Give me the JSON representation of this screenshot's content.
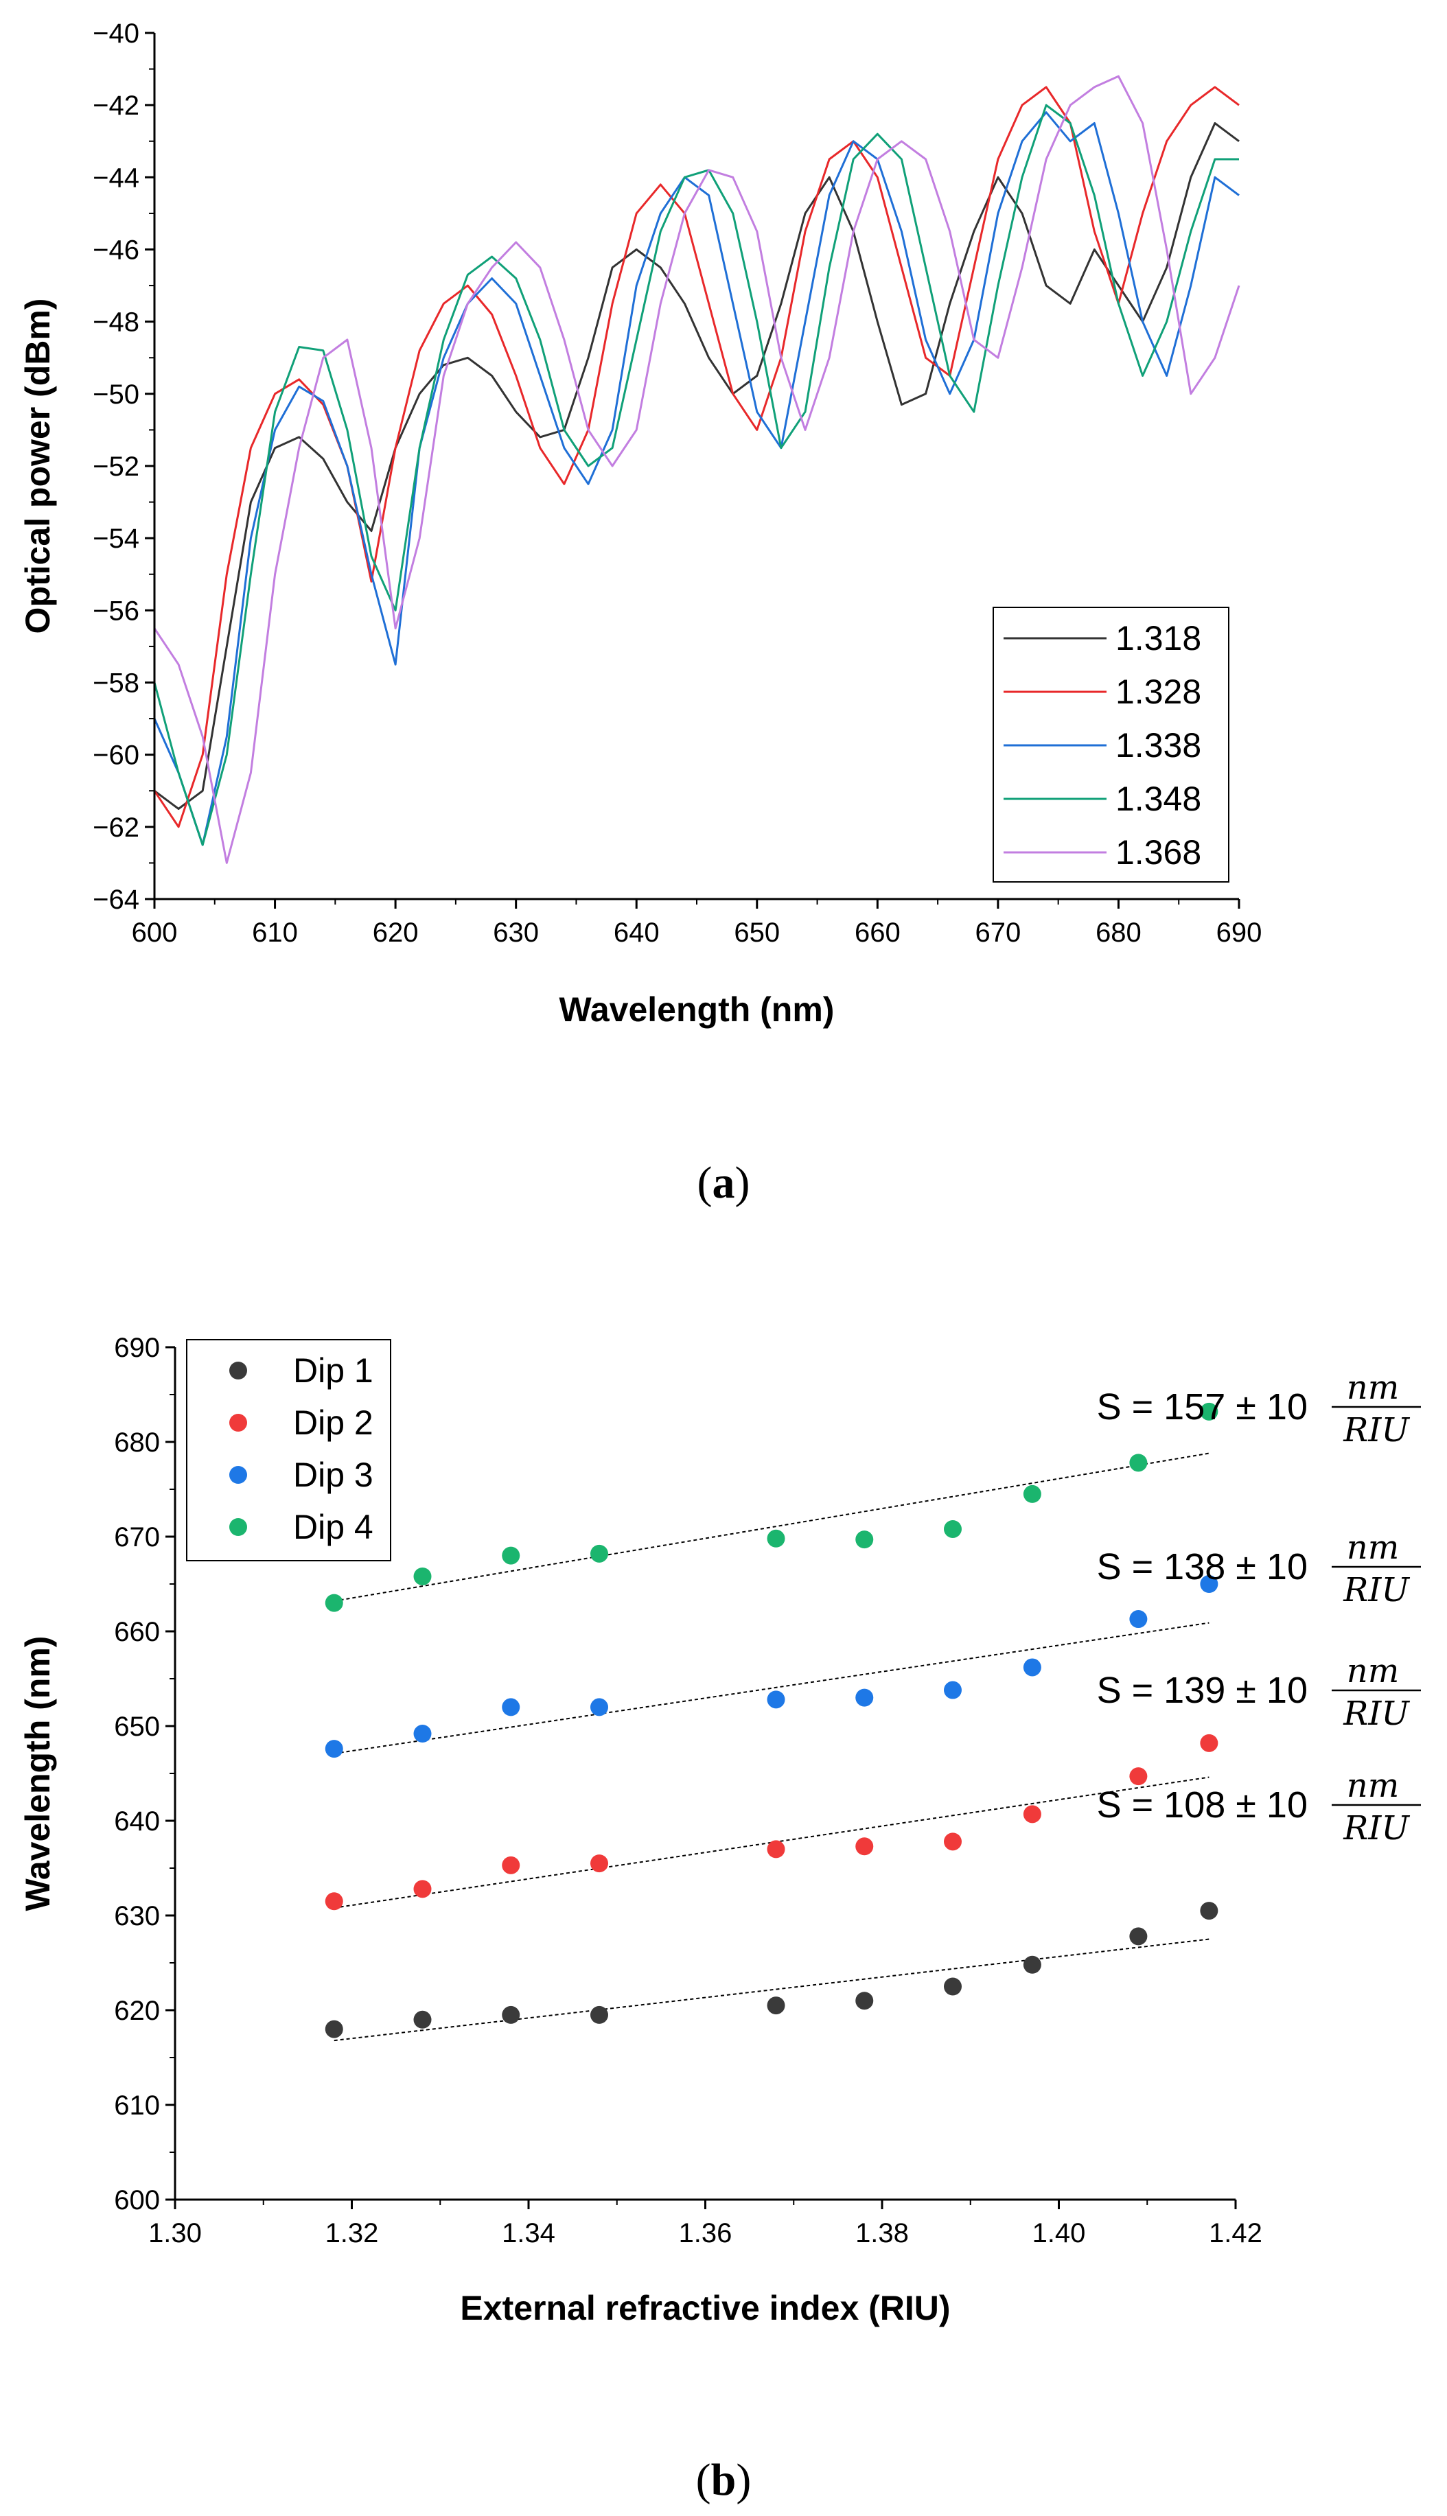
{
  "colors": {
    "s1": "#333333",
    "s2": "#e8282a",
    "s3": "#1f6fd6",
    "s4": "#10a078",
    "s5": "#c27ee0",
    "dip1": "#3a3a3a",
    "dip2": "#f03a3a",
    "dip3": "#1e78e6",
    "dip4": "#1bb56e"
  },
  "captions": {
    "a": {
      "open": "(",
      "letter": "a",
      "close": ")"
    },
    "b": {
      "open": "(",
      "letter": "b",
      "close": ")"
    }
  },
  "chart_data": [
    {
      "type": "line",
      "title": "",
      "xlabel": "Wavelength (nm)",
      "ylabel": "Optical power (dBm)",
      "xlim": [
        600,
        690
      ],
      "ylim": [
        -64,
        -40
      ],
      "xticks": [
        "600",
        "610",
        "620",
        "630",
        "640",
        "650",
        "660",
        "670",
        "680",
        "690"
      ],
      "yticks": [
        "-40",
        "-42",
        "-44",
        "-46",
        "-48",
        "-50",
        "-52",
        "-54",
        "-56",
        "-58",
        "-60",
        "-62",
        "-64"
      ],
      "legend_position": "bottom-right",
      "series": [
        {
          "name": "1.318",
          "x": [
            600,
            602,
            604,
            606,
            608,
            610,
            612,
            614,
            616,
            618,
            620,
            622,
            624,
            626,
            628,
            630,
            632,
            634,
            636,
            638,
            640,
            642,
            644,
            646,
            648,
            650,
            652,
            654,
            656,
            658,
            660,
            662,
            664,
            666,
            668,
            670,
            672,
            674,
            676,
            678,
            680,
            682,
            684,
            686,
            688,
            690
          ],
          "y": [
            -61.0,
            -61.5,
            -61.0,
            -57.0,
            -53.0,
            -51.5,
            -51.2,
            -51.8,
            -53.0,
            -53.8,
            -51.5,
            -50.0,
            -49.2,
            -49.0,
            -49.5,
            -50.5,
            -51.2,
            -51.0,
            -49.0,
            -46.5,
            -46.0,
            -46.5,
            -47.5,
            -49.0,
            -50.0,
            -49.5,
            -47.5,
            -45.0,
            -44.0,
            -45.5,
            -48.0,
            -50.3,
            -50.0,
            -47.5,
            -45.5,
            -44.0,
            -45.0,
            -47.0,
            -47.5,
            -46.0,
            -47.0,
            -48.0,
            -46.5,
            -44.0,
            -42.5,
            -43.0
          ]
        },
        {
          "name": "1.328",
          "x": [
            600,
            602,
            604,
            606,
            608,
            610,
            612,
            614,
            616,
            618,
            620,
            622,
            624,
            626,
            628,
            630,
            632,
            634,
            636,
            638,
            640,
            642,
            644,
            646,
            648,
            650,
            652,
            654,
            656,
            658,
            660,
            662,
            664,
            666,
            668,
            670,
            672,
            674,
            676,
            678,
            680,
            682,
            684,
            686,
            688,
            690
          ],
          "y": [
            -61.0,
            -62.0,
            -60.0,
            -55.0,
            -51.5,
            -50.0,
            -49.6,
            -50.3,
            -52.0,
            -55.2,
            -51.5,
            -48.8,
            -47.5,
            -47.0,
            -47.8,
            -49.5,
            -51.5,
            -52.5,
            -51.0,
            -47.5,
            -45.0,
            -44.2,
            -45.0,
            -47.5,
            -50.0,
            -51.0,
            -49.0,
            -45.5,
            -43.5,
            -43.0,
            -44.0,
            -46.5,
            -49.0,
            -49.5,
            -46.5,
            -43.5,
            -42.0,
            -41.5,
            -42.5,
            -45.5,
            -47.5,
            -45.0,
            -43.0,
            -42.0,
            -41.5,
            -42.0
          ]
        },
        {
          "name": "1.338",
          "x": [
            600,
            602,
            604,
            606,
            608,
            610,
            612,
            614,
            616,
            618,
            620,
            622,
            624,
            626,
            628,
            630,
            632,
            634,
            636,
            638,
            640,
            642,
            644,
            646,
            648,
            650,
            652,
            654,
            656,
            658,
            660,
            662,
            664,
            666,
            668,
            670,
            672,
            674,
            676,
            678,
            680,
            682,
            684,
            686,
            688,
            690
          ],
          "y": [
            -59.0,
            -60.5,
            -62.5,
            -59.5,
            -54.0,
            -51.0,
            -49.8,
            -50.2,
            -52.0,
            -55.0,
            -57.5,
            -51.5,
            -49.0,
            -47.5,
            -46.8,
            -47.5,
            -49.5,
            -51.5,
            -52.5,
            -51.0,
            -47.0,
            -45.0,
            -44.0,
            -44.5,
            -47.5,
            -50.5,
            -51.5,
            -48.0,
            -44.5,
            -43.0,
            -43.5,
            -45.5,
            -48.5,
            -50.0,
            -48.5,
            -45.0,
            -43.0,
            -42.2,
            -43.0,
            -42.5,
            -45.0,
            -48.0,
            -49.5,
            -47.0,
            -44.0,
            -44.5
          ]
        },
        {
          "name": "1.348",
          "x": [
            600,
            602,
            604,
            606,
            608,
            610,
            612,
            614,
            616,
            618,
            620,
            622,
            624,
            626,
            628,
            630,
            632,
            634,
            636,
            638,
            640,
            642,
            644,
            646,
            648,
            650,
            652,
            654,
            656,
            658,
            660,
            662,
            664,
            666,
            668,
            670,
            672,
            674,
            676,
            678,
            680,
            682,
            684,
            686,
            688,
            690
          ],
          "y": [
            -58.0,
            -60.5,
            -62.5,
            -60.0,
            -55.0,
            -50.5,
            -48.7,
            -48.8,
            -51.0,
            -54.5,
            -56.0,
            -51.5,
            -48.5,
            -46.7,
            -46.2,
            -46.8,
            -48.5,
            -51.0,
            -52.0,
            -51.5,
            -48.5,
            -45.5,
            -44.0,
            -43.8,
            -45.0,
            -48.0,
            -51.5,
            -50.5,
            -46.5,
            -43.5,
            -42.8,
            -43.5,
            -46.5,
            -49.5,
            -50.5,
            -47.0,
            -44.0,
            -42.0,
            -42.5,
            -44.5,
            -47.5,
            -49.5,
            -48.0,
            -45.5,
            -43.5,
            -43.5
          ]
        },
        {
          "name": "1.368",
          "x": [
            600,
            602,
            604,
            606,
            608,
            610,
            612,
            614,
            616,
            618,
            620,
            622,
            624,
            626,
            628,
            630,
            632,
            634,
            636,
            638,
            640,
            642,
            644,
            646,
            648,
            650,
            652,
            654,
            656,
            658,
            660,
            662,
            664,
            666,
            668,
            670,
            672,
            674,
            676,
            678,
            680,
            682,
            684,
            686,
            688,
            690
          ],
          "y": [
            -56.5,
            -57.5,
            -59.5,
            -63.0,
            -60.5,
            -55.0,
            -51.5,
            -49.0,
            -48.5,
            -51.5,
            -56.5,
            -54.0,
            -49.5,
            -47.5,
            -46.5,
            -45.8,
            -46.5,
            -48.5,
            -51.0,
            -52.0,
            -51.0,
            -47.5,
            -45.0,
            -43.8,
            -44.0,
            -45.5,
            -49.0,
            -51.0,
            -49.0,
            -45.5,
            -43.5,
            -43.0,
            -43.5,
            -45.5,
            -48.5,
            -49.0,
            -46.5,
            -43.5,
            -42.0,
            -41.5,
            -41.2,
            -42.5,
            -46.0,
            -50.0,
            -49.0,
            -47.0
          ]
        }
      ]
    },
    {
      "type": "scatter",
      "title": "",
      "xlabel": "External refractive index (RIU)",
      "ylabel": "Wavelength (nm)",
      "xlim": [
        1.3,
        1.42
      ],
      "ylim": [
        600,
        690
      ],
      "xticks": [
        "1.30",
        "1.32",
        "1.34",
        "1.36",
        "1.38",
        "1.40",
        "1.42"
      ],
      "yticks": [
        "600",
        "610",
        "620",
        "630",
        "640",
        "650",
        "660",
        "670",
        "680",
        "690"
      ],
      "legend_position": "top-left",
      "series": [
        {
          "name": "Dip 1",
          "x": [
            1.318,
            1.328,
            1.338,
            1.348,
            1.368,
            1.378,
            1.388,
            1.397,
            1.409,
            1.417
          ],
          "y": [
            618.0,
            619.0,
            619.5,
            619.5,
            620.5,
            621.0,
            622.5,
            624.8,
            627.8,
            630.5
          ],
          "fit": {
            "x": [
              1.318,
              1.417
            ],
            "y": [
              616.8,
              627.5
            ]
          },
          "annotation": {
            "prefix": "S = 108 ± 10",
            "num": "nm",
            "den": "RIU"
          }
        },
        {
          "name": "Dip 2",
          "x": [
            1.318,
            1.328,
            1.338,
            1.348,
            1.368,
            1.378,
            1.388,
            1.397,
            1.409,
            1.417
          ],
          "y": [
            631.5,
            632.8,
            635.3,
            635.5,
            637.0,
            637.3,
            637.8,
            640.7,
            644.7,
            648.2
          ],
          "fit": {
            "x": [
              1.318,
              1.417
            ],
            "y": [
              630.8,
              644.6
            ]
          },
          "annotation": {
            "prefix": "S = 139 ± 10",
            "num": "nm",
            "den": "RIU"
          }
        },
        {
          "name": "Dip 3",
          "x": [
            1.318,
            1.328,
            1.338,
            1.348,
            1.368,
            1.378,
            1.388,
            1.397,
            1.409,
            1.417
          ],
          "y": [
            647.6,
            649.2,
            652.0,
            652.0,
            652.8,
            653.0,
            653.8,
            656.2,
            661.3,
            665.0
          ],
          "fit": {
            "x": [
              1.318,
              1.417
            ],
            "y": [
              647.1,
              660.9
            ]
          },
          "annotation": {
            "prefix": "S = 138 ± 10",
            "num": "nm",
            "den": "RIU"
          }
        },
        {
          "name": "Dip 4",
          "x": [
            1.318,
            1.328,
            1.338,
            1.348,
            1.368,
            1.378,
            1.388,
            1.397,
            1.409,
            1.417
          ],
          "y": [
            663.0,
            665.8,
            668.0,
            668.2,
            669.8,
            669.7,
            670.8,
            674.5,
            677.8,
            683.2
          ],
          "fit": {
            "x": [
              1.318,
              1.417
            ],
            "y": [
              663.2,
              678.8
            ]
          },
          "annotation": {
            "prefix": "S = 157 ± 10",
            "num": "nm",
            "den": "RIU"
          }
        }
      ]
    }
  ]
}
